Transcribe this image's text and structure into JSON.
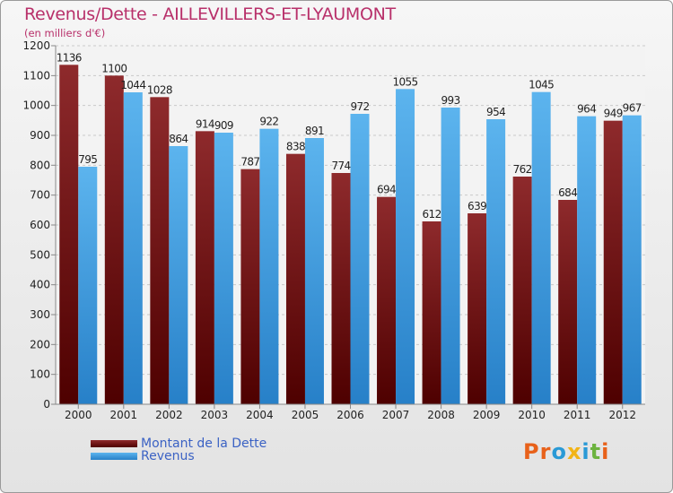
{
  "chart_data": {
    "type": "bar",
    "title": "Revenus/Dette - AILLEVILLERS-ET-LYAUMONT",
    "subtitle": "(en milliers d'€)",
    "xlabel": "",
    "ylabel": "",
    "categories": [
      "2000",
      "2001",
      "2002",
      "2003",
      "2004",
      "2005",
      "2006",
      "2007",
      "2008",
      "2009",
      "2010",
      "2011",
      "2012"
    ],
    "series": [
      {
        "name": "Montant de la Dette",
        "values": [
          1136,
          1100,
          1028,
          914,
          787,
          838,
          774,
          694,
          612,
          639,
          762,
          684,
          949
        ],
        "color": "#7d1a1a"
      },
      {
        "name": "Revenus",
        "values": [
          795,
          1044,
          864,
          909,
          922,
          891,
          972,
          1055,
          993,
          954,
          1045,
          964,
          967
        ],
        "color": "#3a9be0"
      }
    ],
    "ylim": [
      0,
      1200
    ],
    "yticks": [
      0,
      100,
      200,
      300,
      400,
      500,
      600,
      700,
      800,
      900,
      1000,
      1100,
      1200
    ],
    "grid": true,
    "legend_position": "bottom-left"
  },
  "logo": {
    "text": "Proxiti",
    "letters": [
      "P",
      "r",
      "o",
      "x",
      "i",
      "t",
      "i"
    ],
    "colors": [
      "#e8611a",
      "#e8611a",
      "#2a9ad6",
      "#f2b417",
      "#2a9ad6",
      "#6db33f",
      "#e8611a"
    ]
  }
}
